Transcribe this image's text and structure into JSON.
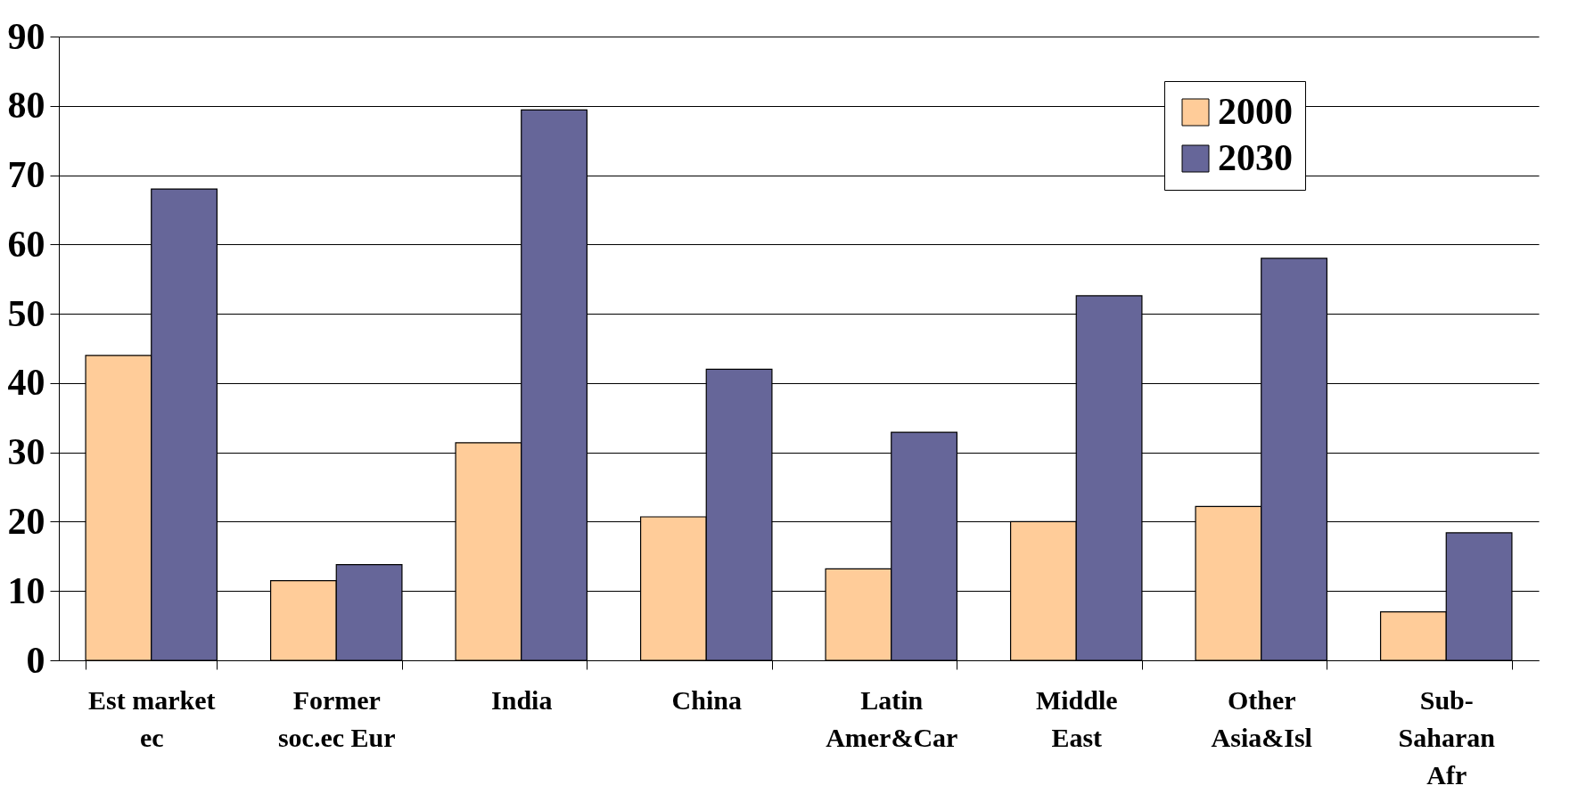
{
  "chart_data": {
    "type": "bar",
    "categories": [
      "Est market\nec",
      "Former\nsoc.ec Eur",
      "India",
      "China",
      "Latin\nAmer&Car",
      "Middle\nEast",
      "Other\nAsia&Isl",
      "Sub-\nSaharan\nAfr"
    ],
    "series": [
      {
        "name": "2000",
        "color": "#ffcc99",
        "values": [
          44,
          11.5,
          31.4,
          20.7,
          13.2,
          20,
          22.2,
          7
        ]
      },
      {
        "name": "2030",
        "color": "#666699",
        "values": [
          68,
          13.8,
          79.4,
          42,
          32.9,
          52.6,
          58,
          18.4
        ]
      }
    ],
    "ylim": [
      0,
      90
    ],
    "yticks": [
      0,
      10,
      20,
      30,
      40,
      50,
      60,
      70,
      80,
      90
    ],
    "grid": "y",
    "legend": "top right"
  }
}
